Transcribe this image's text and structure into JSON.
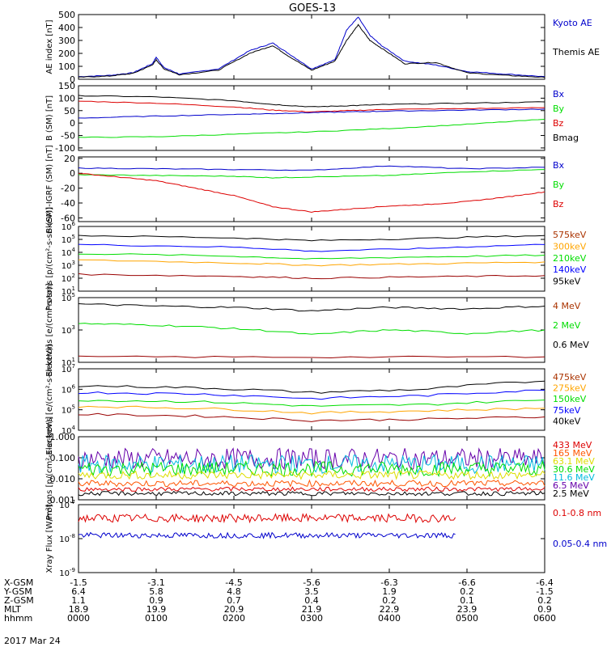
{
  "title": "GOES-13",
  "date_label": "2017 Mar 24",
  "colors": {
    "black": "#000000",
    "blue": "#0000cc",
    "red": "#dd0000",
    "green": "#00dd00",
    "orange": "#ffa500",
    "darkred": "#990000",
    "brown": "#aa3300",
    "purple": "#6600aa",
    "yellow": "#dddd00",
    "cyan": "#00bbdd",
    "royal": "#0000ff",
    "orangered": "#ff5500"
  },
  "orbit": {
    "row_labels": [
      "X-GSM",
      "Y-GSM",
      "Z-GSM",
      "MLT",
      "hhmm"
    ],
    "columns": [
      [
        "-1.5",
        "6.4",
        "1.1",
        "18.9",
        "0000"
      ],
      [
        "-3.1",
        "5.8",
        "0.9",
        "19.9",
        "0100"
      ],
      [
        "-4.5",
        "4.8",
        "0.7",
        "20.9",
        "0200"
      ],
      [
        "-5.6",
        "3.5",
        "0.4",
        "21.9",
        "0300"
      ],
      [
        "-6.3",
        "1.9",
        "0.2",
        "22.9",
        "0400"
      ],
      [
        "-6.6",
        "0.2",
        "0.1",
        "23.9",
        "0500"
      ],
      [
        "-6.4",
        "-1.5",
        "0.2",
        "0.9",
        "0600"
      ]
    ]
  },
  "chart_data": [
    {
      "type": "line",
      "ylabel": "AE index [nT]",
      "x_range": [
        0,
        6
      ],
      "ylim": [
        0,
        500
      ],
      "ticks": [
        0,
        100,
        200,
        300,
        400,
        500
      ],
      "legend": [
        {
          "text": "Kyoto AE",
          "color": "blue"
        },
        {
          "text": "Themis AE",
          "color": "black"
        }
      ],
      "series": [
        {
          "color": "blue",
          "x": [
            0,
            0.4,
            0.7,
            0.95,
            1.0,
            1.1,
            1.3,
            1.8,
            2.2,
            2.5,
            2.7,
            3.0,
            3.3,
            3.45,
            3.6,
            3.75,
            3.9,
            4.2,
            4.6,
            5.0,
            5.5,
            6.0
          ],
          "y": [
            20,
            30,
            50,
            120,
            170,
            90,
            40,
            80,
            220,
            280,
            200,
            80,
            150,
            380,
            480,
            340,
            260,
            140,
            110,
            60,
            40,
            20
          ]
        },
        {
          "color": "black",
          "x": [
            0,
            0.4,
            0.7,
            0.95,
            1.0,
            1.1,
            1.3,
            1.8,
            2.2,
            2.5,
            2.7,
            3.0,
            3.3,
            3.45,
            3.6,
            3.75,
            3.9,
            4.2,
            4.6,
            5.0,
            5.5,
            6.0
          ],
          "y": [
            15,
            25,
            45,
            110,
            150,
            80,
            35,
            70,
            200,
            260,
            180,
            70,
            140,
            300,
            420,
            300,
            240,
            120,
            130,
            50,
            30,
            15
          ]
        }
      ]
    },
    {
      "type": "line",
      "ylabel": "B (SM) [nT]",
      "x_range": [
        0,
        6
      ],
      "ylim": [
        -110,
        150
      ],
      "ticks": [
        -100,
        -50,
        0,
        50,
        100,
        150
      ],
      "legend": [
        {
          "text": "Bx",
          "color": "blue"
        },
        {
          "text": "By",
          "color": "green"
        },
        {
          "text": "Bz",
          "color": "red"
        },
        {
          "text": "Bmag",
          "color": "black"
        }
      ],
      "series": [
        {
          "color": "black",
          "x": [
            0,
            1,
            2,
            2.5,
            3,
            3.5,
            4,
            5,
            6
          ],
          "y": [
            110,
            105,
            90,
            75,
            65,
            70,
            75,
            80,
            85
          ]
        },
        {
          "color": "red",
          "x": [
            0,
            1,
            2,
            2.5,
            3,
            3.5,
            4,
            5,
            6
          ],
          "y": [
            88,
            80,
            65,
            52,
            45,
            50,
            55,
            58,
            62
          ]
        },
        {
          "color": "blue",
          "x": [
            0,
            1,
            2,
            2.5,
            3,
            3.5,
            4,
            5,
            6
          ],
          "y": [
            20,
            28,
            35,
            38,
            42,
            45,
            48,
            52,
            56
          ]
        },
        {
          "color": "green",
          "x": [
            0,
            1,
            2,
            3,
            4,
            5,
            6
          ],
          "y": [
            -58,
            -55,
            -45,
            -35,
            -22,
            -5,
            15
          ]
        }
      ]
    },
    {
      "type": "line",
      "ylabel": "B (SM)-IGRF (SM) [nT]",
      "x_range": [
        0,
        6
      ],
      "ylim": [
        -65,
        22
      ],
      "ticks": [
        -60,
        -40,
        -20,
        0,
        20
      ],
      "legend": [
        {
          "text": "Bx",
          "color": "blue"
        },
        {
          "text": "By",
          "color": "green"
        },
        {
          "text": "Bz",
          "color": "red"
        }
      ],
      "series": [
        {
          "color": "blue",
          "x": [
            0,
            1,
            2,
            3,
            4,
            5,
            6
          ],
          "y": [
            7,
            6,
            5,
            4,
            10,
            6,
            8
          ]
        },
        {
          "color": "green",
          "x": [
            0,
            1,
            2,
            2.5,
            3,
            4,
            5,
            6
          ],
          "y": [
            -2,
            -3,
            -4,
            -6,
            -5,
            -3,
            2,
            5
          ]
        },
        {
          "color": "red",
          "x": [
            0,
            0.5,
            1,
            1.5,
            2,
            2.5,
            3,
            3.5,
            4,
            4.5,
            5,
            5.5,
            6
          ],
          "y": [
            0,
            -5,
            -10,
            -20,
            -30,
            -45,
            -52,
            -48,
            -44,
            -42,
            -38,
            -32,
            -25
          ]
        }
      ]
    },
    {
      "type": "line",
      "log": true,
      "ylabel": "Protons [p/(cm²-s-sr-keV)]",
      "x_range": [
        0,
        6
      ],
      "ylim": [
        10,
        1000000
      ],
      "ticks": [
        10,
        100,
        1000,
        10000,
        100000,
        1000000
      ],
      "legend": [
        {
          "text": "575keV",
          "color": "brown"
        },
        {
          "text": "300keV",
          "color": "orange"
        },
        {
          "text": "210keV",
          "color": "green"
        },
        {
          "text": "140keV",
          "color": "royal"
        },
        {
          "text": "95keV",
          "color": "black"
        }
      ],
      "series": [
        {
          "color": "black",
          "x": [
            0,
            2,
            3,
            4.5,
            6
          ],
          "y": [
            200000,
            130000,
            80000,
            120000,
            200000
          ]
        },
        {
          "color": "royal",
          "x": [
            0,
            2,
            3,
            4.5,
            6
          ],
          "y": [
            40000,
            25000,
            12000,
            20000,
            40000
          ]
        },
        {
          "color": "green",
          "x": [
            0,
            2,
            3,
            4.5,
            6
          ],
          "y": [
            8000,
            5000,
            3000,
            4500,
            6000
          ]
        },
        {
          "color": "orange",
          "x": [
            0,
            2,
            3,
            4.5,
            6
          ],
          "y": [
            2500,
            1500,
            1000,
            1300,
            1800
          ]
        },
        {
          "color": "darkred",
          "x": [
            0,
            2,
            3,
            4.5,
            6
          ],
          "y": [
            200,
            140,
            100,
            130,
            160
          ]
        }
      ]
    },
    {
      "type": "line",
      "log": true,
      "ylabel": "Electrons [e/(cm²-s-sr)]",
      "x_range": [
        0,
        6
      ],
      "ylim": [
        10,
        100000
      ],
      "ticks": [
        10,
        1000,
        100000
      ],
      "legend": [
        {
          "text": "4 MeV",
          "color": "brown"
        },
        {
          "text": "2 MeV",
          "color": "green"
        },
        {
          "text": "0.6 MeV",
          "color": "black"
        }
      ],
      "series": [
        {
          "color": "black",
          "x": [
            0,
            1,
            2,
            3,
            4,
            5,
            6
          ],
          "y": [
            40000,
            30000,
            25000,
            15000,
            25000,
            20000,
            30000
          ]
        },
        {
          "color": "green",
          "x": [
            0,
            1,
            2,
            3,
            4,
            5,
            6
          ],
          "y": [
            2500,
            2000,
            1200,
            500,
            1000,
            600,
            1000
          ]
        },
        {
          "color": "darkred",
          "x": [
            0,
            3,
            6
          ],
          "y": [
            22,
            21,
            22
          ]
        }
      ]
    },
    {
      "type": "line",
      "log": true,
      "ylabel": "Electrons [e/(cm²-s-sr-keV)]",
      "x_range": [
        0,
        6
      ],
      "ylim": [
        10000,
        10000000
      ],
      "ticks": [
        10000,
        100000,
        1000000,
        10000000
      ],
      "legend": [
        {
          "text": "475keV",
          "color": "brown"
        },
        {
          "text": "275keV",
          "color": "orange"
        },
        {
          "text": "150keV",
          "color": "green"
        },
        {
          "text": "75keV",
          "color": "royal"
        },
        {
          "text": "40keV",
          "color": "black"
        }
      ],
      "series": [
        {
          "color": "black",
          "x": [
            0,
            1.5,
            3,
            4.5,
            6
          ],
          "y": [
            1500000,
            1200000,
            700000,
            1000000,
            2500000
          ]
        },
        {
          "color": "royal",
          "x": [
            0,
            1.5,
            3,
            4.5,
            6
          ],
          "y": [
            700000,
            600000,
            350000,
            500000,
            900000
          ]
        },
        {
          "color": "green",
          "x": [
            0,
            1.5,
            3,
            4.5,
            6
          ],
          "y": [
            300000,
            250000,
            150000,
            180000,
            300000
          ]
        },
        {
          "color": "orange",
          "x": [
            0,
            1.5,
            3,
            4.5,
            6
          ],
          "y": [
            150000,
            120000,
            70000,
            90000,
            120000
          ]
        },
        {
          "color": "darkred",
          "x": [
            0,
            1.5,
            3,
            4.5,
            6
          ],
          "y": [
            60000,
            50000,
            30000,
            35000,
            45000
          ]
        }
      ]
    },
    {
      "type": "line",
      "log": true,
      "ylabel": "Protons [p/(cm²-s-sr-keV)]",
      "x_range": [
        0,
        6
      ],
      "ylim": [
        0.001,
        1.0
      ],
      "ticks": [
        0.001,
        0.01,
        0.1,
        1.0
      ],
      "tick_labels": [
        "0.001",
        "0.010",
        "0.100",
        "1.000"
      ],
      "legend": [
        {
          "text": "433 MeV",
          "color": "red"
        },
        {
          "text": "165 MeV",
          "color": "orangered"
        },
        {
          "text": "63.1 MeV",
          "color": "yellow"
        },
        {
          "text": "30.6 MeV",
          "color": "green"
        },
        {
          "text": "11.6 MeV",
          "color": "cyan"
        },
        {
          "text": "6.5 MeV",
          "color": "purple"
        },
        {
          "text": "2.5 MeV",
          "color": "black"
        }
      ],
      "noisy": [
        {
          "color": "purple",
          "level": 0.09,
          "spread": 0.5
        },
        {
          "color": "cyan",
          "level": 0.05,
          "spread": 0.45
        },
        {
          "color": "green",
          "level": 0.03,
          "spread": 0.35
        },
        {
          "color": "yellow",
          "level": 0.015,
          "spread": 0.2
        },
        {
          "color": "orangered",
          "level": 0.006,
          "spread": 0.15
        },
        {
          "color": "red",
          "level": 0.0032,
          "spread": 0.1
        },
        {
          "color": "black",
          "level": 0.002,
          "spread": 0.1
        }
      ]
    },
    {
      "type": "line",
      "log": true,
      "ylabel": "Xray Flux [W/m²]",
      "x_range": [
        0,
        6
      ],
      "ylim": [
        1e-09,
        1e-07
      ],
      "ticks": [
        1e-09,
        1e-08,
        1e-07
      ],
      "legend": [
        {
          "text": "0.1-0.8 nm",
          "color": "red"
        },
        {
          "text": "0.05-0.4 nm",
          "color": "blue"
        }
      ],
      "noisy": [
        {
          "color": "red",
          "level": 4e-08,
          "spread": 0.12,
          "x_end": 4.85
        },
        {
          "color": "blue",
          "level": 1.25e-08,
          "spread": 0.08,
          "x_end": 4.85
        }
      ]
    }
  ]
}
